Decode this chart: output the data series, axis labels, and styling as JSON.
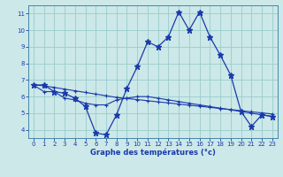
{
  "title": "Graphe des températures (°c)",
  "bg_color": "#cce8e8",
  "line_color": "#1a3aab",
  "grid_color": "#99cccc",
  "xlim": [
    -0.5,
    23.5
  ],
  "ylim": [
    3.5,
    11.5
  ],
  "xticks": [
    0,
    1,
    2,
    3,
    4,
    5,
    6,
    7,
    8,
    9,
    10,
    11,
    12,
    13,
    14,
    15,
    16,
    17,
    18,
    19,
    20,
    21,
    22,
    23
  ],
  "yticks": [
    4,
    5,
    6,
    7,
    8,
    9,
    10,
    11
  ],
  "line1_x": [
    0,
    1,
    2,
    3,
    4,
    5,
    6,
    7,
    8,
    9,
    10,
    11,
    12,
    13,
    14,
    15,
    16,
    17,
    18,
    19,
    20,
    21,
    22,
    23
  ],
  "line1_y": [
    6.7,
    6.7,
    6.3,
    6.2,
    5.9,
    5.4,
    3.8,
    3.7,
    4.9,
    6.5,
    7.8,
    9.3,
    9.0,
    9.6,
    11.1,
    10.0,
    11.1,
    9.6,
    8.5,
    7.3,
    5.1,
    4.2,
    4.9,
    4.8
  ],
  "line2_x": [
    0,
    1,
    2,
    3,
    4,
    5,
    6,
    7,
    8,
    9,
    10,
    11,
    12,
    13,
    14,
    15,
    16,
    17,
    18,
    19,
    20,
    21,
    22,
    23
  ],
  "line2_y": [
    6.7,
    6.65,
    6.55,
    6.45,
    6.35,
    6.25,
    6.15,
    6.05,
    5.95,
    5.88,
    5.82,
    5.75,
    5.68,
    5.62,
    5.55,
    5.48,
    5.42,
    5.35,
    5.28,
    5.22,
    5.15,
    5.08,
    5.02,
    4.95
  ],
  "line3_x": [
    0,
    1,
    2,
    3,
    4,
    5,
    6,
    7,
    8,
    9,
    10,
    11,
    12,
    13,
    14,
    15,
    16,
    17,
    18,
    19,
    20,
    21,
    22,
    23
  ],
  "line3_y": [
    6.7,
    6.3,
    6.3,
    5.9,
    5.8,
    5.6,
    5.5,
    5.5,
    5.8,
    5.9,
    6.0,
    6.0,
    5.9,
    5.8,
    5.7,
    5.6,
    5.5,
    5.4,
    5.3,
    5.2,
    5.1,
    5.0,
    4.9,
    4.8
  ]
}
